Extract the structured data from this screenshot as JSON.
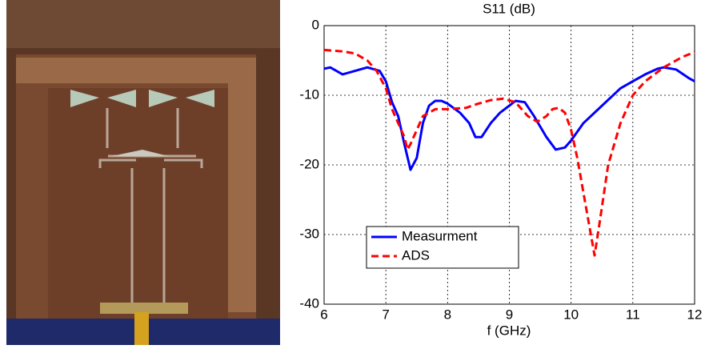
{
  "chart_data": {
    "type": "line",
    "title": "S11 (dB)",
    "x_label": "f (GHz)",
    "xlim": [
      6,
      12
    ],
    "xticks": [
      6,
      7,
      8,
      9,
      10,
      11,
      12
    ],
    "ylim": [
      -40,
      0
    ],
    "yticks": [
      0,
      -10,
      -20,
      -30,
      -40
    ],
    "grid": true,
    "legend": "lower left",
    "series": [
      {
        "name": "Measurment",
        "color": "#0000ff",
        "dash": "solid",
        "x": [
          6,
          6.1,
          6.3,
          6.5,
          6.7,
          6.9,
          7.0,
          7.1,
          7.2,
          7.3,
          7.4,
          7.5,
          7.6,
          7.7,
          7.8,
          7.9,
          8.0,
          8.2,
          8.35,
          8.45,
          8.55,
          8.7,
          8.85,
          9.0,
          9.1,
          9.25,
          9.4,
          9.6,
          9.75,
          9.9,
          10.0,
          10.2,
          10.5,
          10.8,
          11.0,
          11.2,
          11.4,
          11.5,
          11.7,
          11.9,
          12
        ],
        "values": [
          -6.2,
          -6,
          -7,
          -6.5,
          -6,
          -6.5,
          -8,
          -11,
          -13,
          -17,
          -20.7,
          -19,
          -14,
          -11.5,
          -10.8,
          -10.8,
          -11.2,
          -12.5,
          -14,
          -16,
          -16,
          -14,
          -12.5,
          -11.5,
          -10.8,
          -11,
          -13,
          -16,
          -17.8,
          -17.5,
          -16.5,
          -14,
          -11.5,
          -9,
          -8,
          -7,
          -6.2,
          -6,
          -6.3,
          -7.5,
          -8
        ]
      },
      {
        "name": "ADS",
        "color": "#ff0000",
        "dash": "dashed",
        "x": [
          6,
          6.3,
          6.5,
          6.7,
          6.85,
          7.0,
          7.1,
          7.2,
          7.3,
          7.35,
          7.4,
          7.5,
          7.6,
          7.8,
          8.0,
          8.3,
          8.5,
          8.7,
          8.9,
          9.1,
          9.3,
          9.45,
          9.6,
          9.7,
          9.8,
          9.9,
          10.0,
          10.1,
          10.2,
          10.3,
          10.38,
          10.45,
          10.6,
          10.8,
          11.0,
          11.2,
          11.5,
          11.8,
          12
        ],
        "values": [
          -3.5,
          -3.7,
          -4,
          -5,
          -6.5,
          -9,
          -12,
          -14,
          -16,
          -17.8,
          -17,
          -15,
          -13,
          -12,
          -12,
          -11.8,
          -11.2,
          -10.7,
          -10.5,
          -11,
          -13,
          -13.8,
          -13,
          -12,
          -11.8,
          -12.5,
          -15,
          -19,
          -24,
          -29,
          -33,
          -29,
          -20,
          -14,
          -10,
          -8,
          -6,
          -4.5,
          -3.8
        ]
      }
    ]
  }
}
